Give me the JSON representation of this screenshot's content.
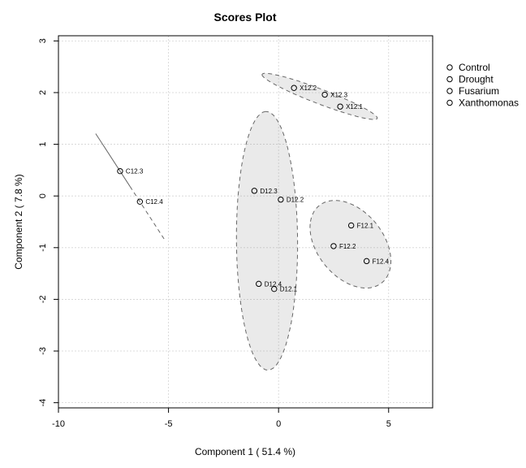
{
  "chart_data": {
    "type": "scatter",
    "title": "Scores Plot",
    "xlabel": "Component 1 ( 51.4 %)",
    "ylabel": "Component 2 ( 7.8 %)",
    "xlim": [
      -10,
      7
    ],
    "ylim": [
      -4.1,
      3.1
    ],
    "xticks": [
      -10,
      -5,
      0,
      5
    ],
    "yticks": [
      -4,
      -3,
      -2,
      -1,
      0,
      1,
      2,
      3
    ],
    "grid": true,
    "legend_position": "top-right",
    "legend": [
      "Control",
      "Drought",
      "Fusarium",
      "Xanthomonas"
    ],
    "series": [
      {
        "name": "Control",
        "points": [
          {
            "label": "C12.3",
            "x": -7.2,
            "y": 0.48
          },
          {
            "label": "C12.4",
            "x": -6.3,
            "y": -0.11
          }
        ]
      },
      {
        "name": "Drought",
        "points": [
          {
            "label": "D12.3",
            "x": -1.1,
            "y": 0.1
          },
          {
            "label": "D12.2",
            "x": 0.1,
            "y": -0.07
          },
          {
            "label": "D12.4",
            "x": -0.9,
            "y": -1.7
          },
          {
            "label": "D12.1",
            "x": -0.2,
            "y": -1.8
          }
        ]
      },
      {
        "name": "Fusarium",
        "points": [
          {
            "label": "F12.1",
            "x": 3.3,
            "y": -0.57
          },
          {
            "label": "F12.2",
            "x": 2.5,
            "y": -0.97
          },
          {
            "label": "F12.4",
            "x": 4.0,
            "y": -1.26
          }
        ]
      },
      {
        "name": "Xanthomonas",
        "points": [
          {
            "label": "X12.2",
            "x": 0.7,
            "y": 2.09
          },
          {
            "label": "X12.3",
            "x": 2.1,
            "y": 1.96
          },
          {
            "label": "X12.1",
            "x": 2.8,
            "y": 1.73
          }
        ]
      }
    ]
  }
}
